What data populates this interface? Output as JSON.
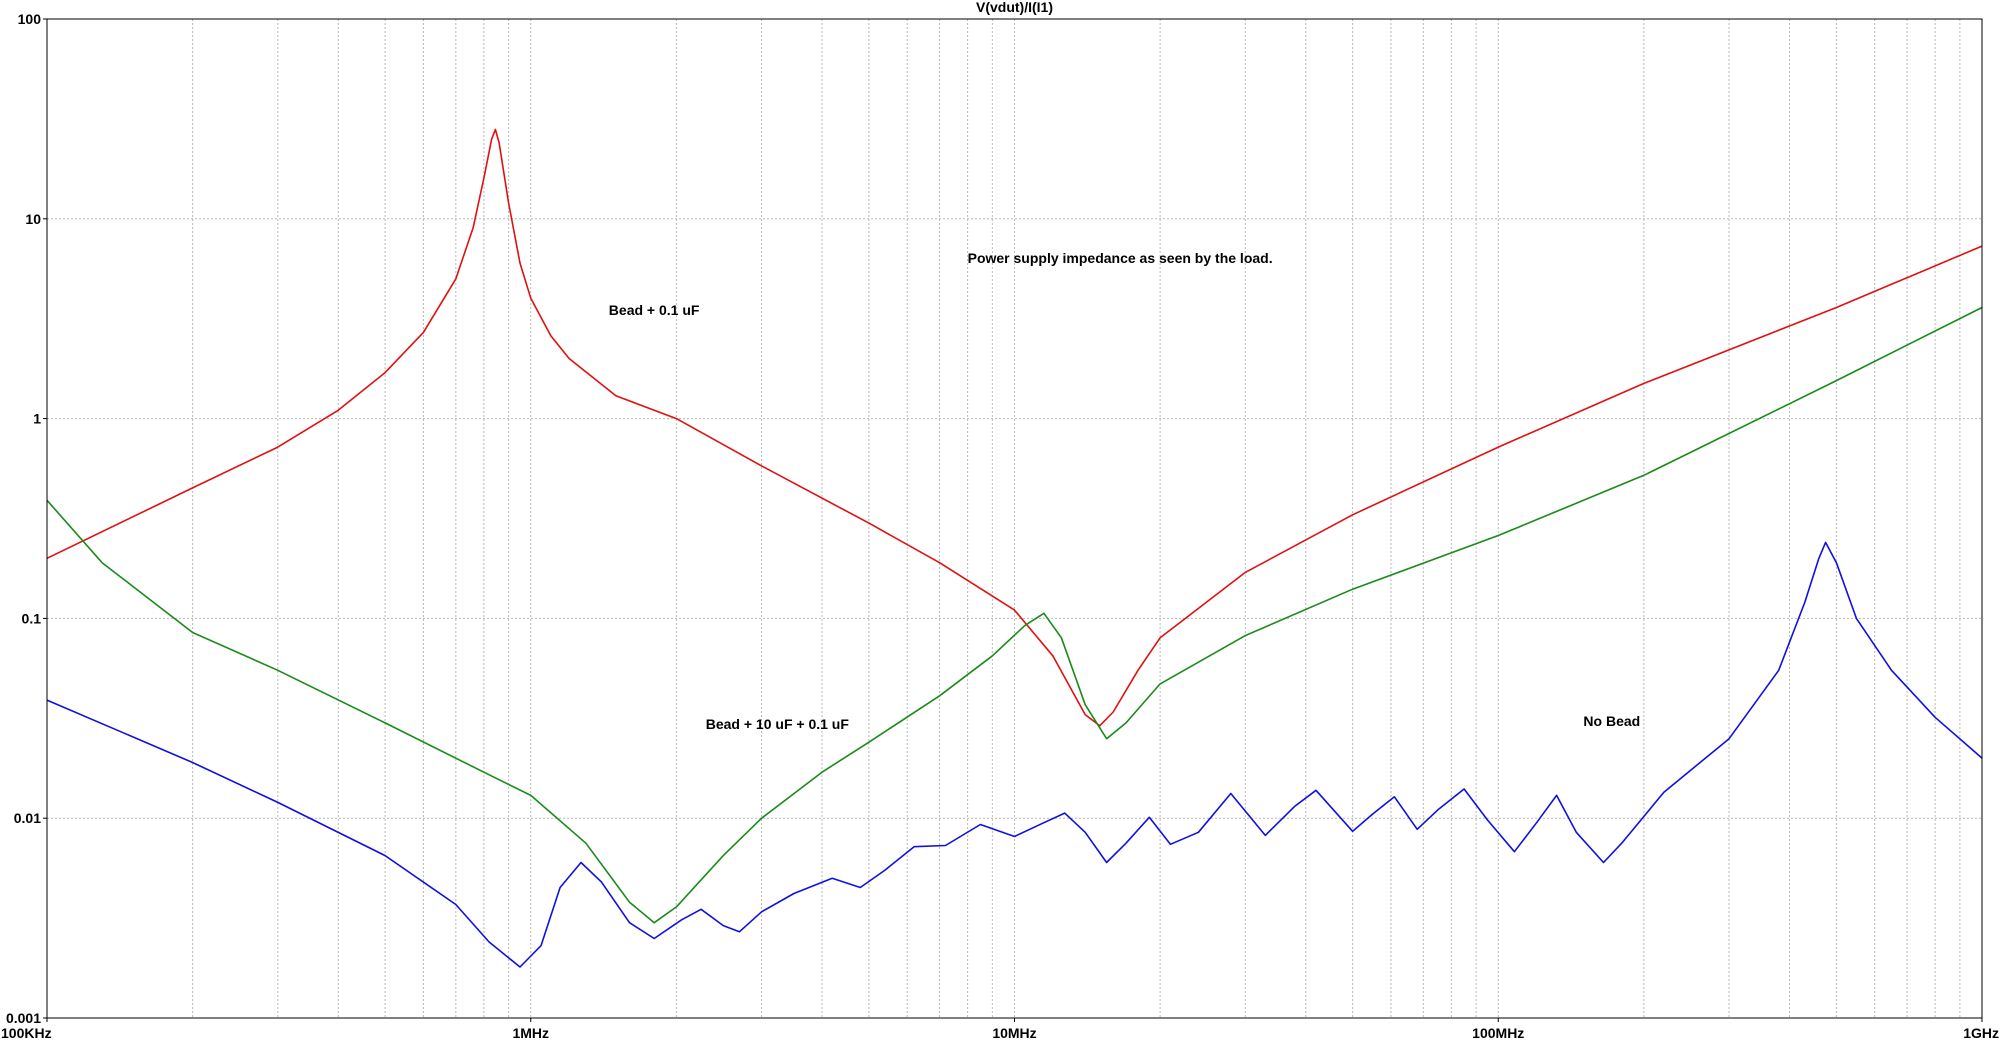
{
  "chart_data": {
    "type": "line",
    "title": "V(vdut)/I(I1)",
    "xscale": "log",
    "yscale": "log",
    "xlim": [
      100000,
      1000000000
    ],
    "ylim": [
      0.001,
      100
    ],
    "grid": true,
    "x_tick_values": [
      100000,
      1000000,
      10000000,
      100000000,
      1000000000
    ],
    "x_tick_labels": [
      "100KHz",
      "1MHz",
      "10MHz",
      "100MHz",
      "1GHz"
    ],
    "y_tick_values": [
      0.001,
      0.01,
      0.1,
      1,
      10,
      100
    ],
    "y_tick_labels": [
      "0.001",
      "0.01",
      "0.1",
      "1",
      "10",
      "100"
    ],
    "annotations": [
      {
        "text": "Power supply impedance as seen by the load.",
        "x": 8000000,
        "y": 6.0
      },
      {
        "text": "Bead + 0.1 uF",
        "x": 1450000,
        "y": 3.3
      },
      {
        "text": "Bead + 10 uF + 0.1 uF",
        "x": 2300000,
        "y": 0.028
      },
      {
        "text": "No Bead",
        "x": 150000000,
        "y": 0.029
      }
    ],
    "series": [
      {
        "color": "#e01010",
        "points": [
          [
            100000,
            0.2
          ],
          [
            200000,
            0.45
          ],
          [
            300000,
            0.72
          ],
          [
            400000,
            1.1
          ],
          [
            500000,
            1.7
          ],
          [
            600000,
            2.7
          ],
          [
            700000,
            5.0
          ],
          [
            760000,
            9.0
          ],
          [
            800000,
            16
          ],
          [
            830000,
            25
          ],
          [
            845000,
            28
          ],
          [
            860000,
            24
          ],
          [
            900000,
            12
          ],
          [
            950000,
            6.0
          ],
          [
            1000000,
            4.0
          ],
          [
            1100000,
            2.6
          ],
          [
            1200000,
            2.0
          ],
          [
            1500000,
            1.3
          ],
          [
            2000000,
            1.0
          ],
          [
            3000000,
            0.58
          ],
          [
            5000000,
            0.3
          ],
          [
            7000000,
            0.19
          ],
          [
            10000000,
            0.11
          ],
          [
            12000000,
            0.065
          ],
          [
            14000000,
            0.033
          ],
          [
            15000000,
            0.029
          ],
          [
            16000000,
            0.034
          ],
          [
            18000000,
            0.055
          ],
          [
            20000000,
            0.08
          ],
          [
            30000000,
            0.17
          ],
          [
            50000000,
            0.33
          ],
          [
            100000000,
            0.72
          ],
          [
            200000000,
            1.5
          ],
          [
            500000000,
            3.6
          ],
          [
            1000000000,
            7.3
          ]
        ]
      },
      {
        "color": "#1a8a1a",
        "points": [
          [
            100000,
            0.39
          ],
          [
            130000,
            0.19
          ],
          [
            200000,
            0.085
          ],
          [
            300000,
            0.055
          ],
          [
            500000,
            0.03
          ],
          [
            800000,
            0.017
          ],
          [
            1000000,
            0.013
          ],
          [
            1300000,
            0.0075
          ],
          [
            1600000,
            0.0038
          ],
          [
            1800000,
            0.003
          ],
          [
            2000000,
            0.0036
          ],
          [
            2500000,
            0.0065
          ],
          [
            3000000,
            0.01
          ],
          [
            4000000,
            0.017
          ],
          [
            5000000,
            0.024
          ],
          [
            7000000,
            0.041
          ],
          [
            9000000,
            0.065
          ],
          [
            10500000,
            0.092
          ],
          [
            11500000,
            0.106
          ],
          [
            12500000,
            0.08
          ],
          [
            14000000,
            0.037
          ],
          [
            15500000,
            0.025
          ],
          [
            17000000,
            0.03
          ],
          [
            20000000,
            0.047
          ],
          [
            30000000,
            0.082
          ],
          [
            50000000,
            0.14
          ],
          [
            100000000,
            0.26
          ],
          [
            200000000,
            0.52
          ],
          [
            500000000,
            1.55
          ],
          [
            1000000000,
            3.6
          ]
        ]
      },
      {
        "color": "#1010e0",
        "points": [
          [
            100000,
            0.039
          ],
          [
            200000,
            0.019
          ],
          [
            300000,
            0.012
          ],
          [
            500000,
            0.0065
          ],
          [
            700000,
            0.0037
          ],
          [
            820000,
            0.0024
          ],
          [
            950000,
            0.0018
          ],
          [
            1050000,
            0.0023
          ],
          [
            1150000,
            0.0045
          ],
          [
            1270000,
            0.006
          ],
          [
            1400000,
            0.0048
          ],
          [
            1600000,
            0.003
          ],
          [
            1800000,
            0.0025
          ],
          [
            2050000,
            0.0031
          ],
          [
            2250000,
            0.0035
          ],
          [
            2500000,
            0.0029
          ],
          [
            2700000,
            0.0027
          ],
          [
            3000000,
            0.0034
          ],
          [
            3500000,
            0.0042
          ],
          [
            4200000,
            0.005
          ],
          [
            4800000,
            0.0045
          ],
          [
            5400000,
            0.0055
          ],
          [
            6200000,
            0.0072
          ],
          [
            7200000,
            0.0073
          ],
          [
            8500000,
            0.0093
          ],
          [
            10000000,
            0.0081
          ],
          [
            11500000,
            0.0095
          ],
          [
            12700000,
            0.0106
          ],
          [
            14000000,
            0.0085
          ],
          [
            15500000,
            0.006
          ],
          [
            17000000,
            0.0075
          ],
          [
            19000000,
            0.0101
          ],
          [
            21000000,
            0.0074
          ],
          [
            24000000,
            0.0085
          ],
          [
            28000000,
            0.0133
          ],
          [
            33000000,
            0.0082
          ],
          [
            38000000,
            0.0115
          ],
          [
            42000000,
            0.0138
          ],
          [
            50000000,
            0.0086
          ],
          [
            55000000,
            0.0105
          ],
          [
            61000000,
            0.0128
          ],
          [
            68000000,
            0.0088
          ],
          [
            75000000,
            0.011
          ],
          [
            85000000,
            0.014
          ],
          [
            95000000,
            0.0098
          ],
          [
            108000000,
            0.0068
          ],
          [
            120000000,
            0.0095
          ],
          [
            132000000,
            0.013
          ],
          [
            145000000,
            0.0085
          ],
          [
            165000000,
            0.006
          ],
          [
            180000000,
            0.0075
          ],
          [
            220000000,
            0.0135
          ],
          [
            300000000,
            0.025
          ],
          [
            380000000,
            0.055
          ],
          [
            430000000,
            0.12
          ],
          [
            460000000,
            0.2
          ],
          [
            475000000,
            0.24
          ],
          [
            500000000,
            0.19
          ],
          [
            550000000,
            0.1
          ],
          [
            650000000,
            0.055
          ],
          [
            800000000,
            0.032
          ],
          [
            1000000000,
            0.02
          ]
        ]
      }
    ]
  }
}
